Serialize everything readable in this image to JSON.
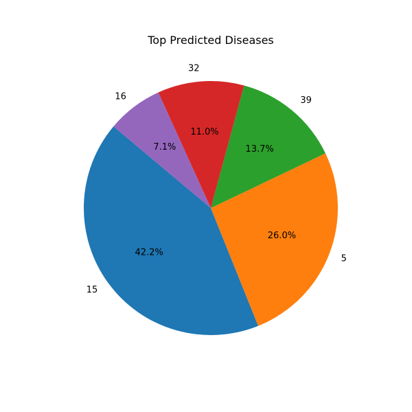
{
  "chart_data": {
    "type": "pie",
    "title": "Top Predicted Diseases",
    "slices": [
      {
        "label": "15",
        "value": 42.2,
        "pct_label": "42.2%",
        "color": "#1f77b4"
      },
      {
        "label": "5",
        "value": 26.0,
        "pct_label": "26.0%",
        "color": "#ff7f0e"
      },
      {
        "label": "39",
        "value": 13.7,
        "pct_label": "13.7%",
        "color": "#2ca02c"
      },
      {
        "label": "32",
        "value": 11.0,
        "pct_label": "11.0%",
        "color": "#d62728"
      },
      {
        "label": "16",
        "value": 7.1,
        "pct_label": "7.1%",
        "color": "#9467bd"
      }
    ],
    "start_angle_deg": 140,
    "direction": "counterclockwise"
  }
}
